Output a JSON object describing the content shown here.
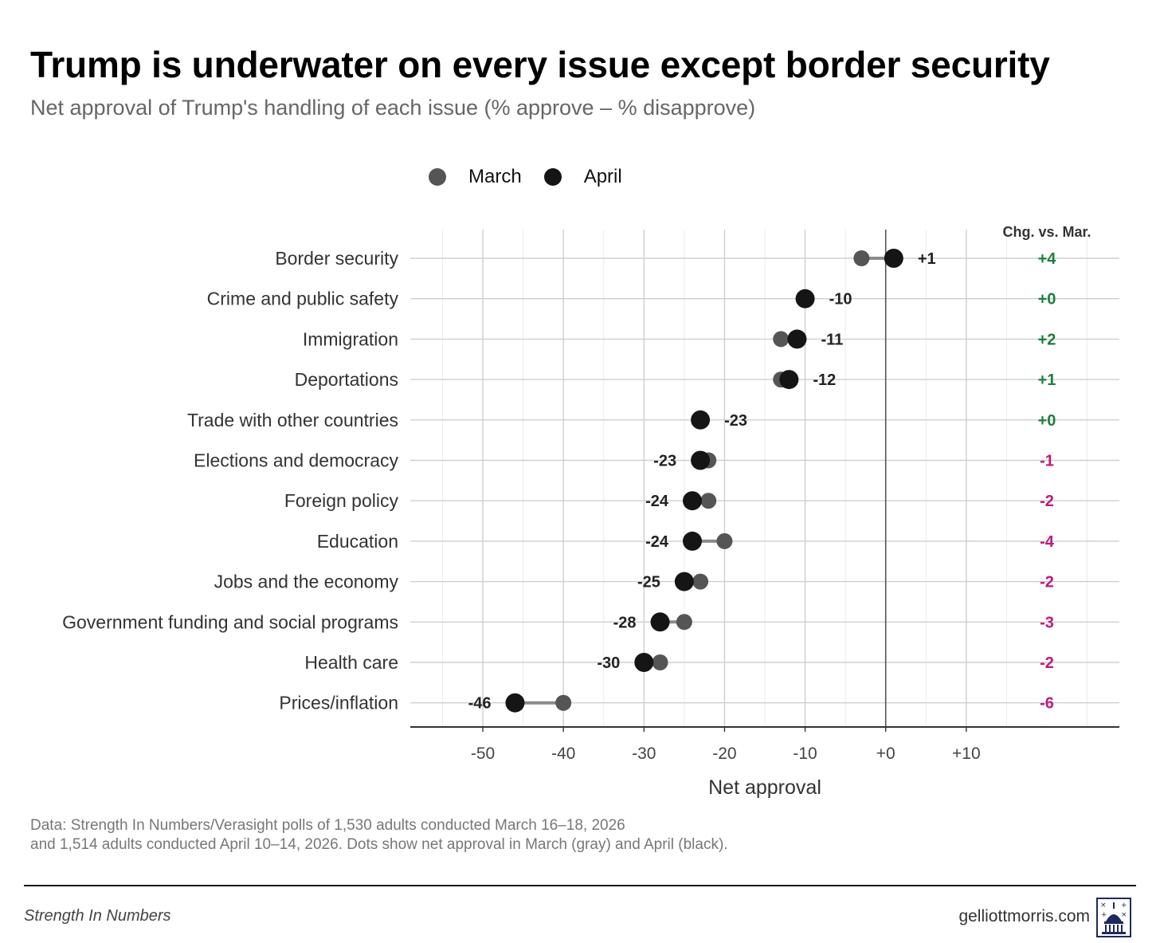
{
  "header": {
    "title": "Trump is underwater on every issue except border security",
    "subtitle": "Net approval of Trump's handling of each issue (% approve – % disapprove)"
  },
  "legend": {
    "march_label": "March",
    "april_label": "April",
    "march_color": "#555555",
    "april_color": "#151515"
  },
  "chart_data": {
    "type": "scatter",
    "subtype": "dumbbell",
    "xlabel": "Net approval",
    "xlim": [
      -59,
      29
    ],
    "x_ticks": [
      -50,
      -40,
      -30,
      -20,
      -10,
      0,
      10
    ],
    "x_tick_labels": [
      "-50",
      "-40",
      "-30",
      "-20",
      "-10",
      "+0",
      "+10"
    ],
    "change_header": "Chg. vs. Mar.",
    "positive_color": "#1b7f3b",
    "negative_color": "#c2187a",
    "grid": true,
    "categories": [
      "Border security",
      "Crime and public safety",
      "Immigration",
      "Deportations",
      "Trade with other countries",
      "Elections and democracy",
      "Foreign policy",
      "Education",
      "Jobs and the economy",
      "Government funding and social programs",
      "Health care",
      "Prices/inflation"
    ],
    "series": [
      {
        "name": "March",
        "values": [
          -3,
          -10,
          -13,
          -13,
          -23,
          -22,
          -22,
          -20,
          -23,
          -25,
          -28,
          -40
        ]
      },
      {
        "name": "April",
        "values": [
          1,
          -10,
          -11,
          -12,
          -23,
          -23,
          -24,
          -24,
          -25,
          -28,
          -30,
          -46
        ]
      }
    ],
    "value_labels": [
      "+1",
      "-10",
      "-11",
      "-12",
      "-23",
      "-23",
      "-24",
      "-24",
      "-25",
      "-28",
      "-30",
      "-46"
    ],
    "changes": [
      "+4",
      "+0",
      "+2",
      "+1",
      "+0",
      "-1",
      "-2",
      "-4",
      "-2",
      "-3",
      "-2",
      "-6"
    ]
  },
  "footer": {
    "source_line1": "Data: Strength In Numbers/Verasight polls of 1,530 adults conducted March 16–18, 2026",
    "source_line2": "and 1,514 adults conducted April 10–14, 2026. Dots show net approval in March (gray) and April (black).",
    "brand": "Strength In Numbers",
    "site": "gelliottmorris.com",
    "logo_icon": "capitol-dome-icon"
  }
}
